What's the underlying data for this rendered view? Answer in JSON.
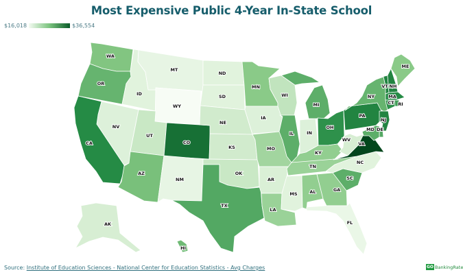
{
  "title": "Most Expensive Public 4-Year In-State School",
  "legend": {
    "min_label": "$16,018",
    "max_label": "$36,554",
    "min": 16018,
    "max": 36554,
    "color_low": "#f4fbf2",
    "color_high": "#00441b"
  },
  "footer": {
    "source_prefix": "Source:",
    "source_link": "Institute of Education Sciences - National Center for Education Statistics - Avg Charges"
  },
  "logo": {
    "mark": "GO",
    "name": "BankingRates"
  },
  "states": {
    "WA": 26500,
    "OR": 28000,
    "CA": 31500,
    "NV": 20000,
    "ID": 19500,
    "MT": 18500,
    "WY": 16018,
    "UT": 22000,
    "CO": 33500,
    "AZ": 27000,
    "NM": 18500,
    "ND": 19500,
    "SD": 19500,
    "NE": 21500,
    "KS": 21500,
    "OK": 22000,
    "TX": 29000,
    "MN": 26000,
    "IA": 20000,
    "MO": 24500,
    "AR": 20500,
    "LA": 25000,
    "MS": 19500,
    "AL": 25500,
    "GA": 25500,
    "SC": 28500,
    "TN": 25000,
    "KY": 25500,
    "IL": 28500,
    "IN": 20000,
    "WI": 22500,
    "MI": 28500,
    "OH": 31000,
    "WV": 21000,
    "VA": 36554,
    "NC": 19500,
    "FL": 18000,
    "PA": 32000,
    "NY": 28000,
    "ME": 26000,
    "VT": 32000,
    "NH": 32000,
    "MA": 31500,
    "CT": 31000,
    "RI": 30000,
    "NJ": 32000,
    "DE": 29000,
    "MD": 28500,
    "AK": 21000,
    "HI": 27500
  }
}
